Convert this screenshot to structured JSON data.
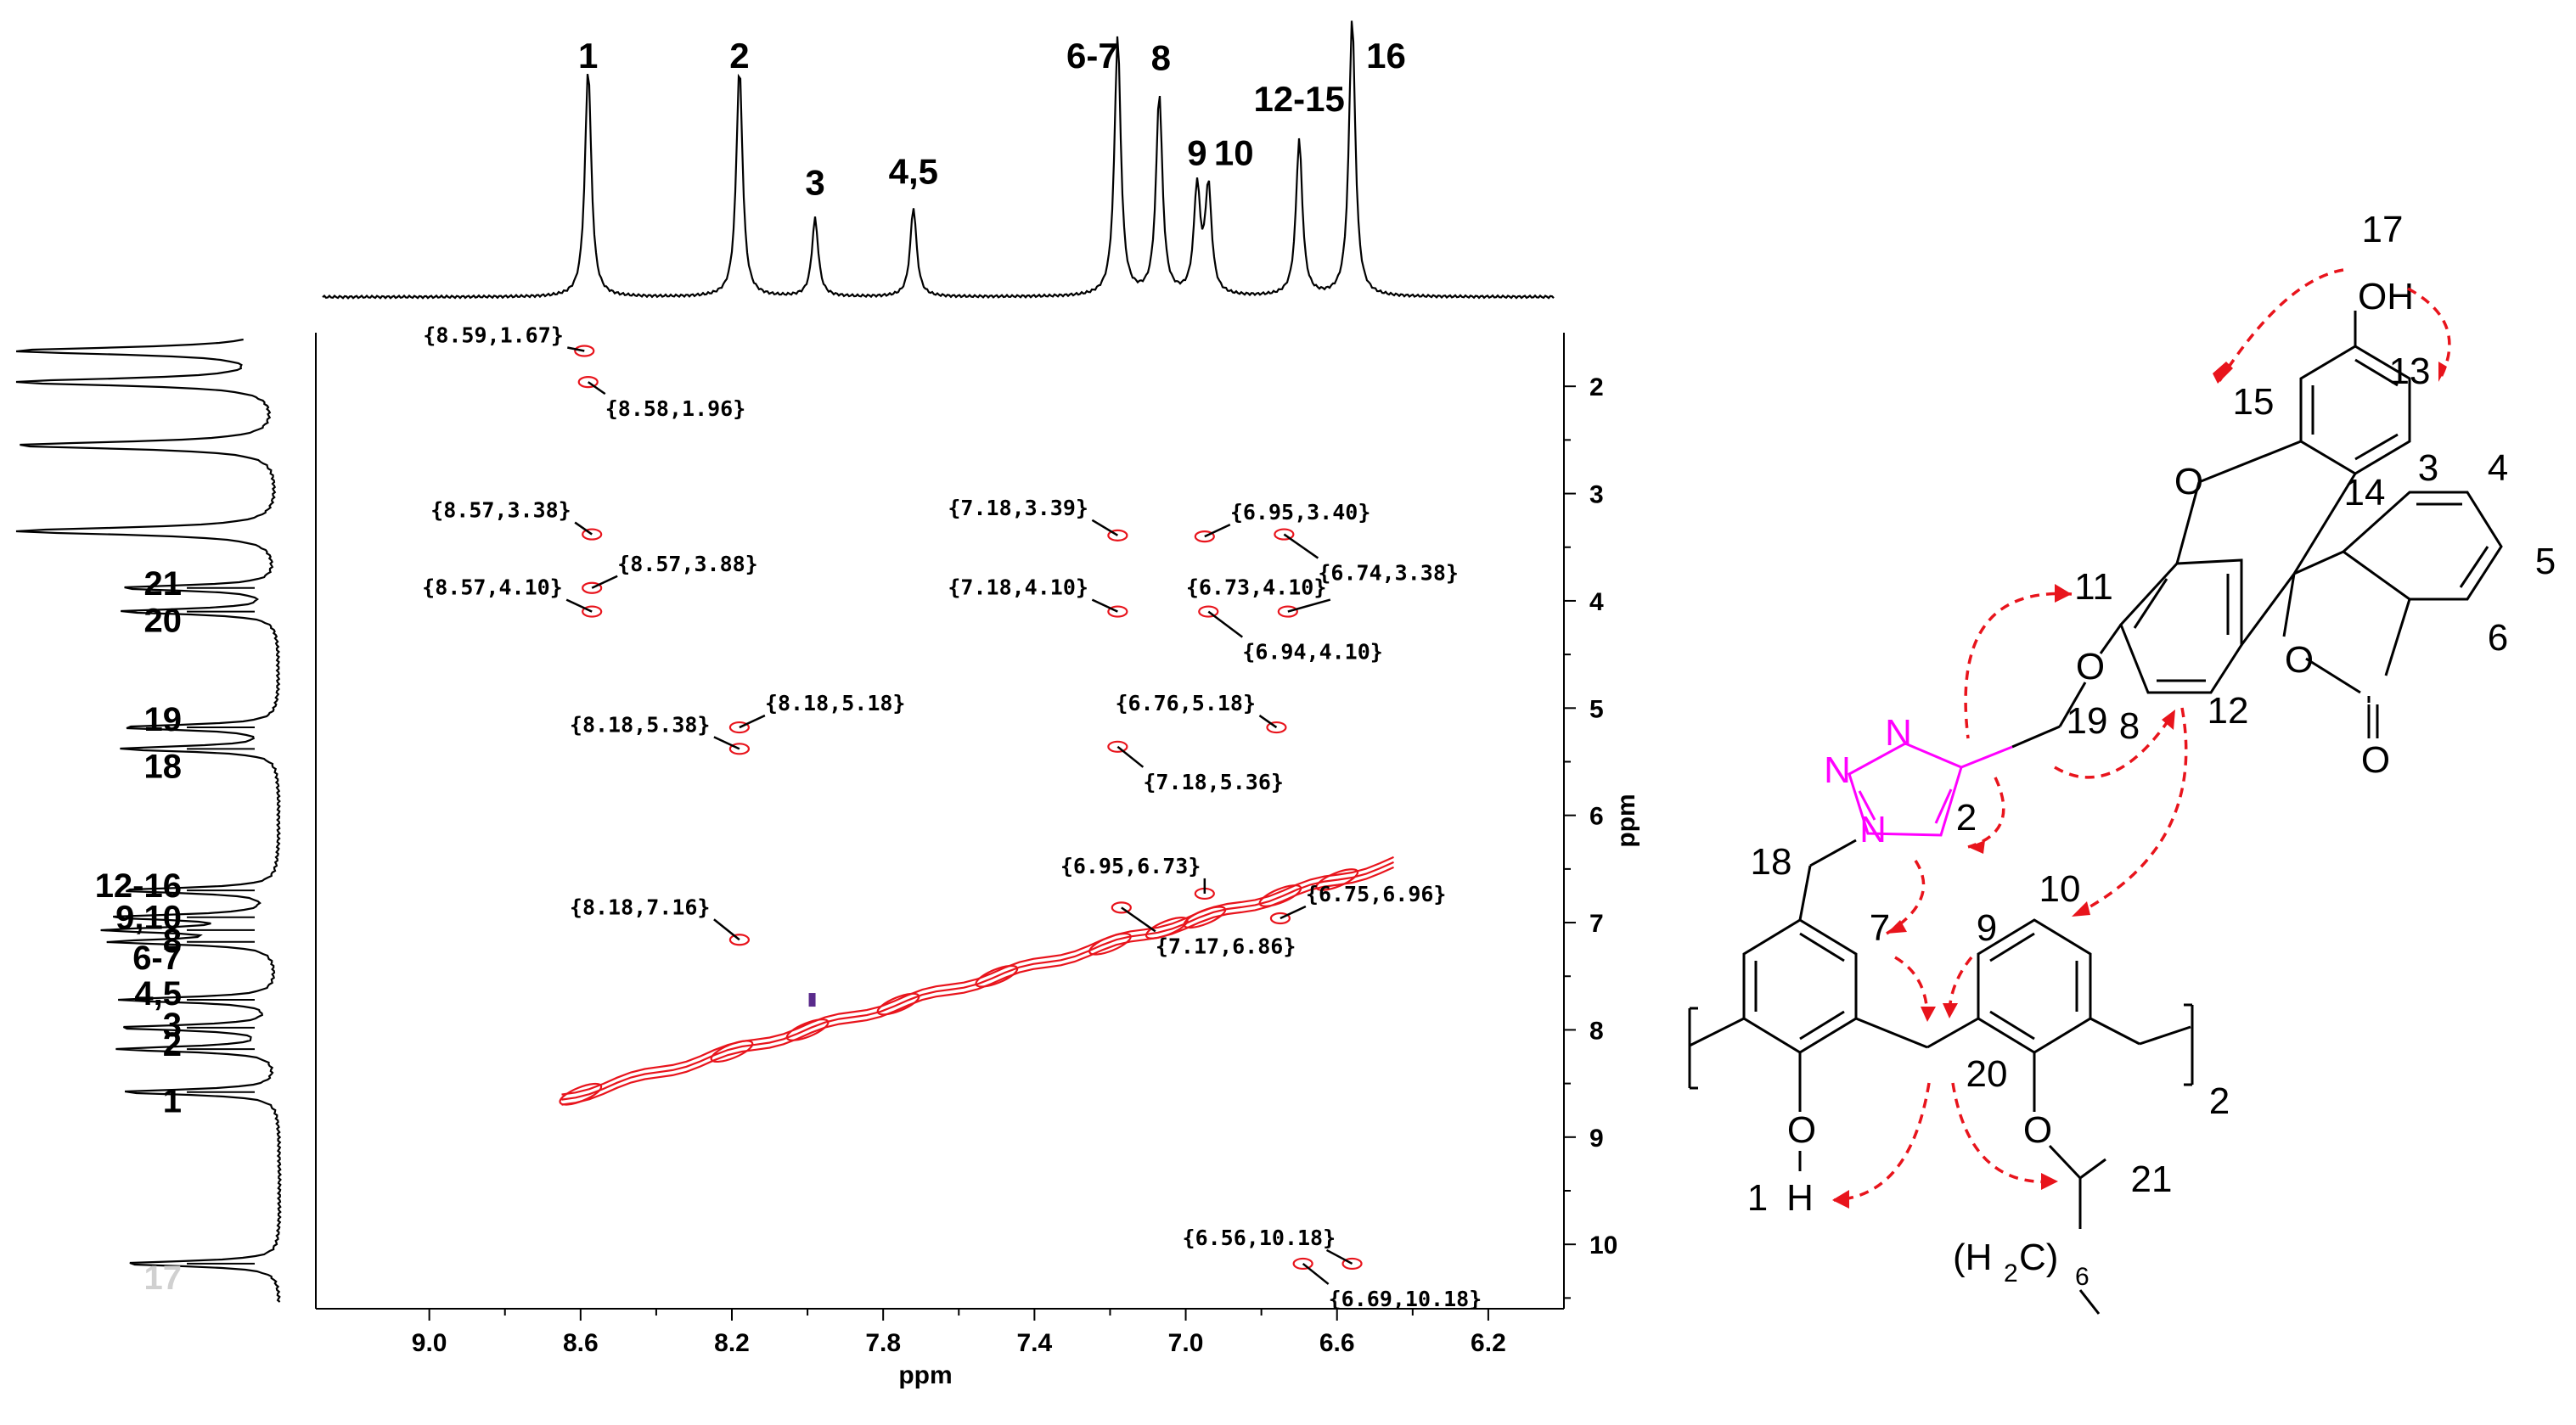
{
  "chart_data": {
    "type": "2D NMR (NOESY) contour plot",
    "xlabel": "ppm",
    "ylabel": "ppm",
    "x_range": [
      9.3,
      6.0
    ],
    "y_range": [
      1.5,
      10.6
    ],
    "x_ticks": [
      "9.0",
      "8.6",
      "8.2",
      "7.8",
      "7.4",
      "7.0",
      "6.6",
      "6.2"
    ],
    "y_ticks": [
      "2",
      "3",
      "4",
      "5",
      "6",
      "7",
      "8",
      "9",
      "10"
    ],
    "top_spectrum": {
      "peaks": [
        {
          "label": "1",
          "ppm": 8.58,
          "height": 0.82
        },
        {
          "label": "2",
          "ppm": 8.18,
          "height": 0.82
        },
        {
          "label": "3",
          "ppm": 7.98,
          "height": 0.28
        },
        {
          "label": "4,5",
          "ppm": 7.72,
          "height": 0.32
        },
        {
          "label": "6-7",
          "ppm": 7.18,
          "height": 0.93
        },
        {
          "label": "8",
          "ppm": 7.07,
          "height": 0.72
        },
        {
          "label": "9",
          "ppm": 6.97,
          "height": 0.38
        },
        {
          "label": "10",
          "ppm": 6.94,
          "height": 0.38
        },
        {
          "label": "12-15",
          "ppm": 6.7,
          "height": 0.56
        },
        {
          "label": "16",
          "ppm": 6.56,
          "height": 1.0
        }
      ]
    },
    "side_spectrum": {
      "peaks": [
        {
          "label": "17",
          "ppm": 10.18
        },
        {
          "label": "1",
          "ppm": 8.58
        },
        {
          "label": "2",
          "ppm": 8.18
        },
        {
          "label": "3",
          "ppm": 7.98
        },
        {
          "label": "4,5",
          "ppm": 7.72
        },
        {
          "label": "6-7",
          "ppm": 7.18
        },
        {
          "label": "8",
          "ppm": 7.07
        },
        {
          "label": "9,10",
          "ppm": 6.95
        },
        {
          "label": "12-16",
          "ppm": 6.7
        },
        {
          "label": "18",
          "ppm": 5.38
        },
        {
          "label": "19",
          "ppm": 5.18
        },
        {
          "label": "20",
          "ppm": 4.1
        },
        {
          "label": "21",
          "ppm": 3.88
        }
      ]
    },
    "cross_peaks": [
      {
        "x": 8.59,
        "y": 1.67,
        "label": "{8.59,1.67}"
      },
      {
        "x": 8.58,
        "y": 1.96,
        "label": "{8.58,1.96}"
      },
      {
        "x": 8.57,
        "y": 3.38,
        "label": "{8.57,3.38}"
      },
      {
        "x": 8.57,
        "y": 3.88,
        "label": "{8.57,3.88}"
      },
      {
        "x": 8.57,
        "y": 4.1,
        "label": "{8.57,4.10}"
      },
      {
        "x": 8.18,
        "y": 5.18,
        "label": "{8.18,5.18}"
      },
      {
        "x": 8.18,
        "y": 5.38,
        "label": "{8.18,5.38}"
      },
      {
        "x": 8.18,
        "y": 7.16,
        "label": "{8.18,7.16}"
      },
      {
        "x": 7.18,
        "y": 3.39,
        "label": "{7.18,3.39}"
      },
      {
        "x": 6.95,
        "y": 3.4,
        "label": "{6.95,3.40}"
      },
      {
        "x": 6.74,
        "y": 3.38,
        "label": "{6.74,3.38}"
      },
      {
        "x": 7.18,
        "y": 4.1,
        "label": "{7.18,4.10}"
      },
      {
        "x": 6.73,
        "y": 4.1,
        "label": "{6.73,4.10}"
      },
      {
        "x": 6.94,
        "y": 4.1,
        "label": "{6.94,4.10}"
      },
      {
        "x": 6.76,
        "y": 5.18,
        "label": "{6.76,5.18}"
      },
      {
        "x": 7.18,
        "y": 5.36,
        "label": "{7.18,5.36}"
      },
      {
        "x": 6.95,
        "y": 6.73,
        "label": "{6.95,6.73}"
      },
      {
        "x": 6.75,
        "y": 6.96,
        "label": "{6.75,6.96}"
      },
      {
        "x": 7.17,
        "y": 6.86,
        "label": "{7.17,6.86}"
      },
      {
        "x": 6.56,
        "y": 10.18,
        "label": "{6.56,10.18}"
      },
      {
        "x": 6.69,
        "y": 10.18,
        "label": "{6.69,10.18}"
      }
    ],
    "diagonal": {
      "from": 8.65,
      "to": 6.45
    }
  },
  "structure": {
    "atom_labels": [
      "1",
      "2",
      "3",
      "4",
      "5",
      "6",
      "7",
      "8",
      "9",
      "10",
      "11",
      "12",
      "13",
      "14",
      "15",
      "17",
      "18",
      "19",
      "20",
      "21"
    ],
    "hydroxyl": "OH",
    "oxygen": "O",
    "nitrogen": "N",
    "hydrogen": "H",
    "chain": "(H",
    "chain_sub": "2",
    "chain_c": "C)",
    "chain_n": "6",
    "repeat": "2",
    "arrow_color": "#e8141c",
    "triazole_color": "#ff00ff"
  }
}
